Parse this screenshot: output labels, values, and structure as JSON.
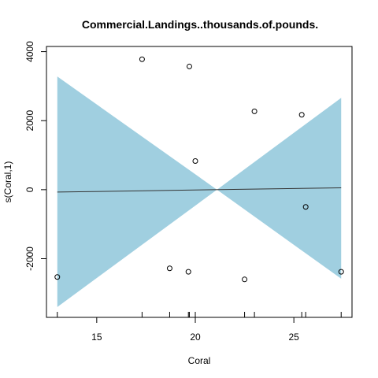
{
  "chart_data": {
    "type": "scatter",
    "title": "Commercial.Landings..thousands.of.pounds.",
    "xlabel": "Coral",
    "ylabel": "s(Coral,1)",
    "xlim": [
      12.45,
      27.95
    ],
    "ylim": [
      -3700,
      4150
    ],
    "x_ticks": [
      15,
      20,
      25
    ],
    "y_ticks": [
      -2000,
      0,
      2000,
      4000
    ],
    "grid": false,
    "colors": {
      "band": "#a0cfe0",
      "line": "#333333",
      "points": "#000000"
    },
    "fit_line": {
      "x": [
        13.0,
        27.4
      ],
      "y": [
        -70,
        55
      ]
    },
    "confidence_band": {
      "x": [
        13.0,
        21.1,
        27.4
      ],
      "upper": [
        3280,
        0,
        2660
      ],
      "lower": [
        -3400,
        0,
        -2580
      ]
    },
    "points": {
      "x": [
        13.0,
        17.3,
        18.7,
        19.65,
        19.7,
        20.0,
        22.5,
        23.0,
        25.4,
        25.6,
        27.4
      ],
      "y": [
        -2530,
        3780,
        -2280,
        -2380,
        3570,
        830,
        -2600,
        2270,
        2170,
        -500,
        -2380
      ]
    },
    "rug": [
      13.0,
      17.3,
      18.7,
      19.65,
      19.7,
      20.0,
      22.5,
      23.0,
      25.4,
      25.6,
      27.4
    ]
  }
}
